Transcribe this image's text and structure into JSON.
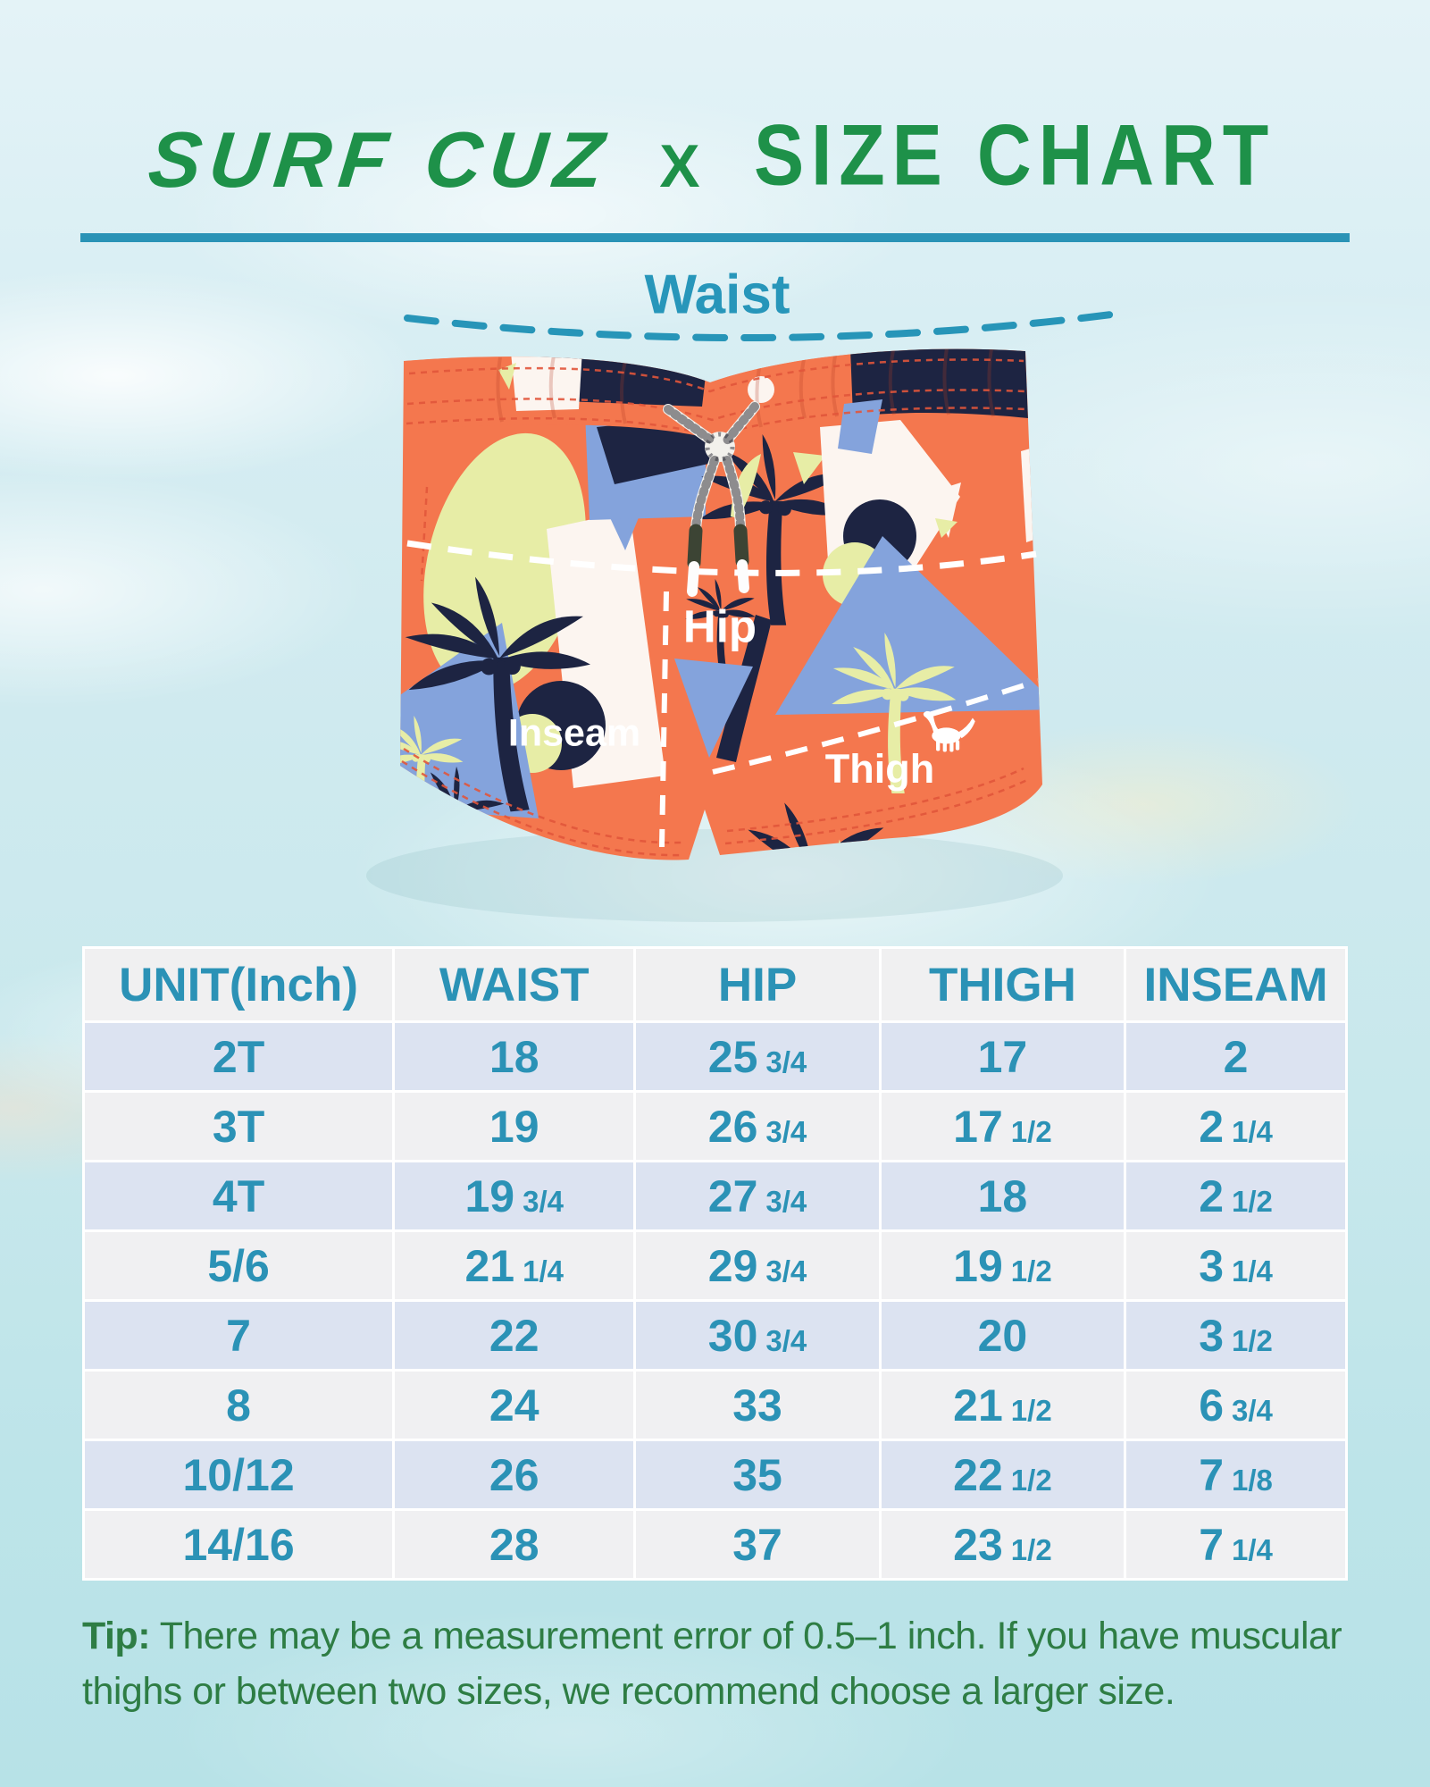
{
  "title": {
    "brand": "SURF CUZ",
    "separator": "X",
    "heading": "SIZE CHART"
  },
  "diagram": {
    "waist": "Waist",
    "hip": "Hip",
    "inseam": "Inseam",
    "thigh": "Thigh",
    "logo_icon": "dinosaur-embroidery"
  },
  "table": {
    "headers": [
      "UNIT(Inch)",
      "WAIST",
      "HIP",
      "THIGH",
      "INSEAM"
    ],
    "rows": [
      [
        "2T",
        "18",
        "25 3/4",
        "17",
        "2"
      ],
      [
        "3T",
        "19",
        "26 3/4",
        "17 1/2",
        "2 1/4"
      ],
      [
        "4T",
        "19 3/4",
        "27 3/4",
        "18",
        "2 1/2"
      ],
      [
        "5/6",
        "21 1/4",
        "29 3/4",
        "19 1/2",
        "3 1/4"
      ],
      [
        "7",
        "22",
        "30 3/4",
        "20",
        "3 1/2"
      ],
      [
        "8",
        "24",
        "33",
        "21 1/2",
        "6 3/4"
      ],
      [
        "10/12",
        "26",
        "35",
        "22 1/2",
        "7 1/8"
      ],
      [
        "14/16",
        "28",
        "37",
        "23 1/2",
        "7 1/4"
      ]
    ]
  },
  "tip": {
    "label": "Tip:",
    "line1": "There may be a measurement error of 0.5–1 inch. If you have muscular",
    "line2": "thighs or between two sizes, we recommend choose a larger size."
  },
  "colors": {
    "title_green": "#1e9149",
    "tip_green": "#2e7d44",
    "table_text_teal": "#2b92b6",
    "divider_teal": "#2a93b6",
    "waist_label_teal": "#2796ba",
    "row_alt_periwinkle": "#dce3f1",
    "row_light_gray": "#f0f0f2",
    "header_bg": "#f0f0f1",
    "shorts_orange": "#f4774e",
    "shorts_blue": "#84a3dc",
    "shorts_navy": "#1d2442",
    "shorts_white": "#fcf5f0",
    "shorts_yellow_green": "#e7eda6",
    "measure_label_white": "#ffffff",
    "background_aqua": "#cfeaef"
  },
  "chart_data": {
    "type": "table",
    "title": "SURF CUZ X SIZE CHART",
    "unit": "Inch",
    "columns": [
      "UNIT(Inch)",
      "WAIST",
      "HIP",
      "THIGH",
      "INSEAM"
    ],
    "rows": [
      {
        "size": "2T",
        "waist": 18,
        "hip": 25.75,
        "thigh": 17,
        "inseam": 2
      },
      {
        "size": "3T",
        "waist": 19,
        "hip": 26.75,
        "thigh": 17.5,
        "inseam": 2.25
      },
      {
        "size": "4T",
        "waist": 19.75,
        "hip": 27.75,
        "thigh": 18,
        "inseam": 2.5
      },
      {
        "size": "5/6",
        "waist": 21.25,
        "hip": 29.75,
        "thigh": 19.5,
        "inseam": 3.25
      },
      {
        "size": "7",
        "waist": 22,
        "hip": 30.75,
        "thigh": 20,
        "inseam": 3.5
      },
      {
        "size": "8",
        "waist": 24,
        "hip": 33,
        "thigh": 21.5,
        "inseam": 6.75
      },
      {
        "size": "10/12",
        "waist": 26,
        "hip": 35,
        "thigh": 22.5,
        "inseam": 7.125
      },
      {
        "size": "14/16",
        "waist": 28,
        "hip": 37,
        "thigh": 23.5,
        "inseam": 7.25
      }
    ]
  }
}
